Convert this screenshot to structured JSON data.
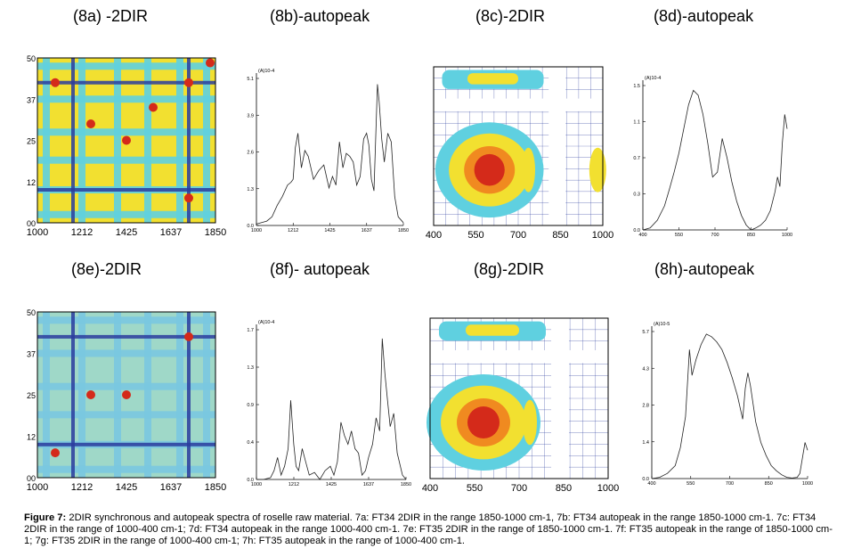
{
  "panels": [
    {
      "id": "8a",
      "title": "(8a) -2DIR"
    },
    {
      "id": "8b",
      "title": "(8b)-autopeak"
    },
    {
      "id": "8c",
      "title": "(8c)-2DIR"
    },
    {
      "id": "8d",
      "title": "(8d)-autopeak"
    },
    {
      "id": "8e",
      "title": "(8e)-2DIR"
    },
    {
      "id": "8f",
      "title": "(8f)- autopeak"
    },
    {
      "id": "8g",
      "title": "(8g)-2DIR"
    },
    {
      "id": "8h",
      "title": "(8h)-autopeak"
    }
  ],
  "caption": {
    "label": "Figure 7:",
    "text": "2DIR synchronous and autopeak spectra of roselle raw material. 7a: FT34 2DIR in the range 1850-1000 cm-1, 7b: FT34 autopeak in the range 1850-1000 cm-1. 7c: FT34 2DIR in the range of 1000-400 cm-1; 7d: FT34 autopeak in the range 1000-400 cm-1. 7e: FT35 2DIR in the range of 1850-1000 cm-1. 7f: FT35 autopeak in the range of 1850-1000 cm-1; 7g: FT35 2DIR in the range of 1000-400 cm-1; 7h: FT35 autopeak in the range of 1000-400 cm-1."
  },
  "colors": {
    "blue": "#2a3c9e",
    "cyan": "#5fd0e0",
    "yellow": "#f2e030",
    "red": "#d42a1a",
    "line": "#222222"
  },
  "chart_data": [
    {
      "id": "8a",
      "type": "heatmap",
      "xticks": [
        "1000",
        "1212",
        "1425",
        "1637",
        "1850"
      ],
      "yticks": [
        "50",
        "37",
        "25",
        "12",
        "00"
      ],
      "xlim": [
        1000,
        1850
      ],
      "ylim": [
        1000,
        1850
      ]
    },
    {
      "id": "8b",
      "type": "line",
      "ylabel": "(A)10-4",
      "xticks": [
        "1000",
        "1212",
        "1425",
        "1637",
        "1850"
      ],
      "yticks": [
        "0.0",
        "1.3",
        "2.6",
        "3.9",
        "5.1"
      ],
      "xlim": [
        1000,
        1850
      ],
      "ylim": [
        0,
        5.1
      ],
      "x": [
        1000,
        1030,
        1060,
        1090,
        1120,
        1150,
        1180,
        1200,
        1212,
        1225,
        1240,
        1260,
        1280,
        1300,
        1330,
        1360,
        1390,
        1420,
        1440,
        1460,
        1480,
        1500,
        1520,
        1540,
        1560,
        1580,
        1600,
        1620,
        1637,
        1650,
        1665,
        1680,
        1700,
        1710,
        1725,
        1740,
        1760,
        1780,
        1800,
        1820,
        1850
      ],
      "y": [
        0.05,
        0.1,
        0.15,
        0.3,
        0.7,
        1.0,
        1.4,
        1.5,
        1.6,
        2.7,
        3.2,
        2.0,
        2.6,
        2.4,
        1.6,
        1.9,
        2.1,
        1.3,
        1.7,
        1.4,
        2.9,
        2.0,
        2.5,
        2.4,
        2.2,
        1.4,
        1.7,
        3.0,
        3.2,
        2.8,
        1.6,
        1.2,
        4.9,
        4.3,
        3.0,
        2.2,
        3.2,
        2.9,
        1.0,
        0.3,
        0.1
      ]
    },
    {
      "id": "8c",
      "type": "heatmap",
      "xticks": [
        "400",
        "550",
        "700",
        "850",
        "1000"
      ],
      "xlim": [
        400,
        1000
      ],
      "ylim": [
        400,
        1000
      ]
    },
    {
      "id": "8d",
      "type": "line",
      "ylabel": "(A)10-4",
      "xticks": [
        "400",
        "550",
        "700",
        "850",
        "1000"
      ],
      "yticks": [
        "0.0",
        "0.3",
        "0.7",
        "1.1",
        "1.5"
      ],
      "xlim": [
        400,
        1000
      ],
      "ylim": [
        0,
        1.5
      ],
      "x": [
        400,
        430,
        460,
        490,
        510,
        530,
        550,
        570,
        590,
        610,
        630,
        650,
        670,
        690,
        710,
        730,
        750,
        770,
        790,
        810,
        830,
        850,
        870,
        890,
        910,
        930,
        950,
        960,
        970,
        980,
        990,
        1000
      ],
      "y": [
        0.0,
        0.02,
        0.1,
        0.25,
        0.42,
        0.6,
        0.8,
        1.05,
        1.3,
        1.45,
        1.4,
        1.2,
        0.9,
        0.55,
        0.6,
        0.95,
        0.75,
        0.5,
        0.3,
        0.15,
        0.05,
        0.0,
        0.02,
        0.05,
        0.1,
        0.2,
        0.4,
        0.55,
        0.45,
        0.9,
        1.2,
        1.05
      ]
    },
    {
      "id": "8e",
      "type": "heatmap",
      "xticks": [
        "1000",
        "1212",
        "1425",
        "1637",
        "1850"
      ],
      "yticks": [
        "50",
        "37",
        "25",
        "12",
        "00"
      ],
      "xlim": [
        1000,
        1850
      ],
      "ylim": [
        1000,
        1850
      ]
    },
    {
      "id": "8f",
      "type": "line",
      "ylabel": "(A)10-4",
      "xticks": [
        "1000",
        "1212",
        "1425",
        "1637",
        "1850"
      ],
      "yticks": [
        "0.0",
        "0.4",
        "0.9",
        "1.3",
        "1.7"
      ],
      "xlim": [
        1000,
        1850
      ],
      "ylim": [
        0,
        1.7
      ],
      "x": [
        1000,
        1040,
        1080,
        1100,
        1120,
        1140,
        1160,
        1180,
        1195,
        1212,
        1225,
        1240,
        1260,
        1280,
        1300,
        1330,
        1360,
        1390,
        1420,
        1440,
        1460,
        1480,
        1500,
        1520,
        1540,
        1560,
        1580,
        1600,
        1620,
        1637,
        1660,
        1680,
        1700,
        1715,
        1730,
        1745,
        1760,
        1780,
        1800,
        1830,
        1850
      ],
      "y": [
        0.0,
        0.0,
        0.02,
        0.1,
        0.25,
        0.05,
        0.15,
        0.35,
        0.9,
        0.4,
        0.15,
        0.1,
        0.35,
        0.2,
        0.05,
        0.08,
        0.0,
        0.1,
        0.15,
        0.05,
        0.2,
        0.65,
        0.5,
        0.4,
        0.55,
        0.35,
        0.3,
        0.05,
        0.1,
        0.25,
        0.4,
        0.7,
        0.55,
        1.6,
        1.2,
        0.9,
        0.6,
        0.75,
        0.3,
        0.05,
        0.0
      ]
    },
    {
      "id": "8g",
      "type": "heatmap",
      "xticks": [
        "400",
        "550",
        "700",
        "850",
        "1000"
      ],
      "xlim": [
        400,
        1000
      ],
      "ylim": [
        400,
        1000
      ]
    },
    {
      "id": "8h",
      "type": "line",
      "ylabel": "(A)10-5",
      "xticks": [
        "400",
        "550",
        "700",
        "850",
        "1000"
      ],
      "yticks": [
        "0.0",
        "1.4",
        "2.8",
        "4.3",
        "5.7"
      ],
      "xlim": [
        400,
        1000
      ],
      "ylim": [
        0,
        5.7
      ],
      "x": [
        400,
        430,
        460,
        490,
        510,
        530,
        545,
        555,
        570,
        590,
        610,
        630,
        650,
        670,
        690,
        710,
        730,
        750,
        760,
        770,
        780,
        800,
        820,
        840,
        860,
        880,
        900,
        920,
        940,
        960,
        970,
        980,
        990,
        1000
      ],
      "y": [
        0.0,
        0.05,
        0.2,
        0.5,
        1.2,
        2.4,
        5.0,
        4.0,
        4.6,
        5.2,
        5.6,
        5.5,
        5.3,
        5.0,
        4.5,
        3.9,
        3.2,
        2.3,
        3.5,
        4.1,
        3.6,
        2.2,
        1.4,
        0.9,
        0.5,
        0.3,
        0.15,
        0.05,
        0.02,
        0.05,
        0.2,
        0.8,
        1.4,
        1.1
      ]
    }
  ]
}
